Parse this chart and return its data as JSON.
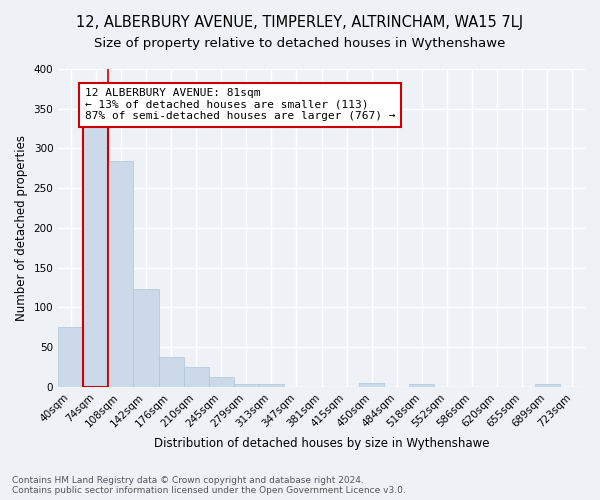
{
  "title": "12, ALBERBURY AVENUE, TIMPERLEY, ALTRINCHAM, WA15 7LJ",
  "subtitle": "Size of property relative to detached houses in Wythenshawe",
  "xlabel": "Distribution of detached houses by size in Wythenshawe",
  "ylabel": "Number of detached properties",
  "categories": [
    "40sqm",
    "74sqm",
    "108sqm",
    "142sqm",
    "176sqm",
    "210sqm",
    "245sqm",
    "279sqm",
    "313sqm",
    "347sqm",
    "381sqm",
    "415sqm",
    "450sqm",
    "484sqm",
    "518sqm",
    "552sqm",
    "586sqm",
    "620sqm",
    "655sqm",
    "689sqm",
    "723sqm"
  ],
  "values": [
    75,
    328,
    284,
    123,
    38,
    25,
    13,
    4,
    4,
    0,
    0,
    0,
    5,
    0,
    4,
    0,
    0,
    0,
    0,
    4,
    0
  ],
  "bar_color": "#ccd9e8",
  "bar_edge_color": "#b0c4d8",
  "highlight_bar_index": 1,
  "highlight_edge_color": "#cc0000",
  "annotation_line1": "12 ALBERBURY AVENUE: 81sqm",
  "annotation_line2": "← 13% of detached houses are smaller (113)",
  "annotation_line3": "87% of semi-detached houses are larger (767) →",
  "annotation_box_color": "#ffffff",
  "annotation_box_edge_color": "#cc0000",
  "property_line_x": 1.5,
  "ylim": [
    0,
    400
  ],
  "yticks": [
    0,
    50,
    100,
    150,
    200,
    250,
    300,
    350,
    400
  ],
  "footer_text": "Contains HM Land Registry data © Crown copyright and database right 2024.\nContains public sector information licensed under the Open Government Licence v3.0.",
  "background_color": "#eef2f7",
  "grid_color": "#ffffff",
  "title_fontsize": 10.5,
  "subtitle_fontsize": 9.5,
  "xlabel_fontsize": 8.5,
  "ylabel_fontsize": 8.5,
  "tick_fontsize": 7.5,
  "annotation_fontsize": 8,
  "footer_fontsize": 6.5
}
